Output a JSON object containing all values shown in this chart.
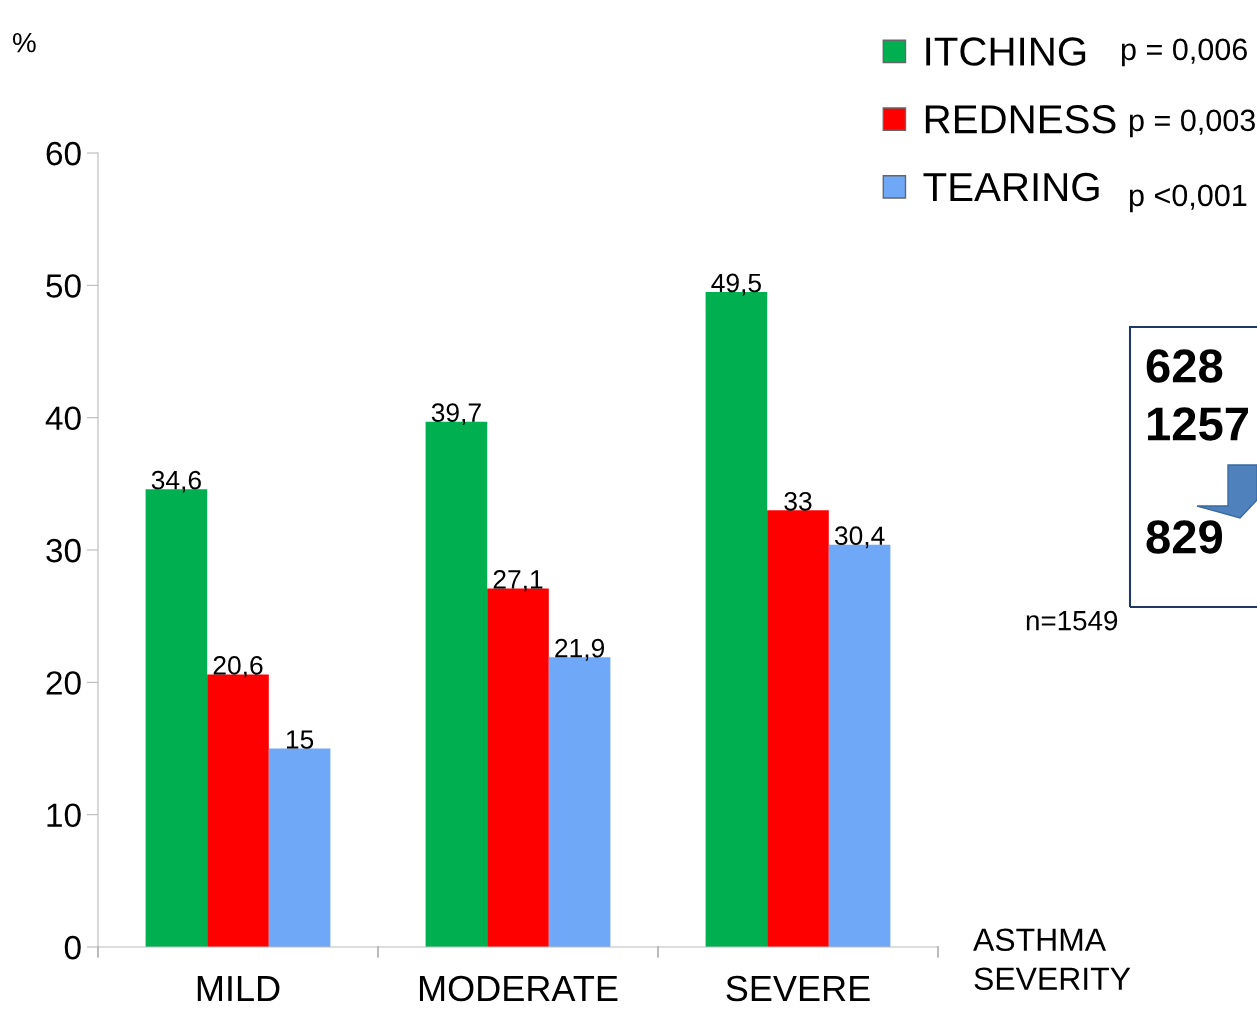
{
  "chart_data": {
    "type": "bar",
    "categories": [
      "MILD",
      "MODERATE",
      "SEVERE"
    ],
    "series": [
      {
        "name": "ITCHING",
        "color": "#00b050",
        "values": [
          34.6,
          39.7,
          49.5
        ],
        "value_labels": [
          "34,6",
          "39,7",
          "49,5"
        ]
      },
      {
        "name": "REDNESS",
        "color": "#ff0000",
        "values": [
          20.6,
          27.1,
          33
        ],
        "value_labels": [
          "20,6",
          "27,1",
          "33"
        ]
      },
      {
        "name": "TEARING",
        "color": "#6fa8f7",
        "values": [
          15,
          21.9,
          30.4
        ],
        "value_labels": [
          "15",
          "21,9",
          "30,4"
        ]
      }
    ],
    "ylabel": "%",
    "xlabel": "ASTHMA\nSEVERITY",
    "ylim": [
      0,
      60
    ],
    "yticks": [
      0,
      10,
      20,
      30,
      40,
      50,
      60
    ],
    "legend": "top right",
    "grid": false,
    "annotations": [
      "p = 0,006",
      "p = 0,003",
      "p <0,001",
      "n=1549",
      "628",
      "1257",
      "829"
    ]
  }
}
